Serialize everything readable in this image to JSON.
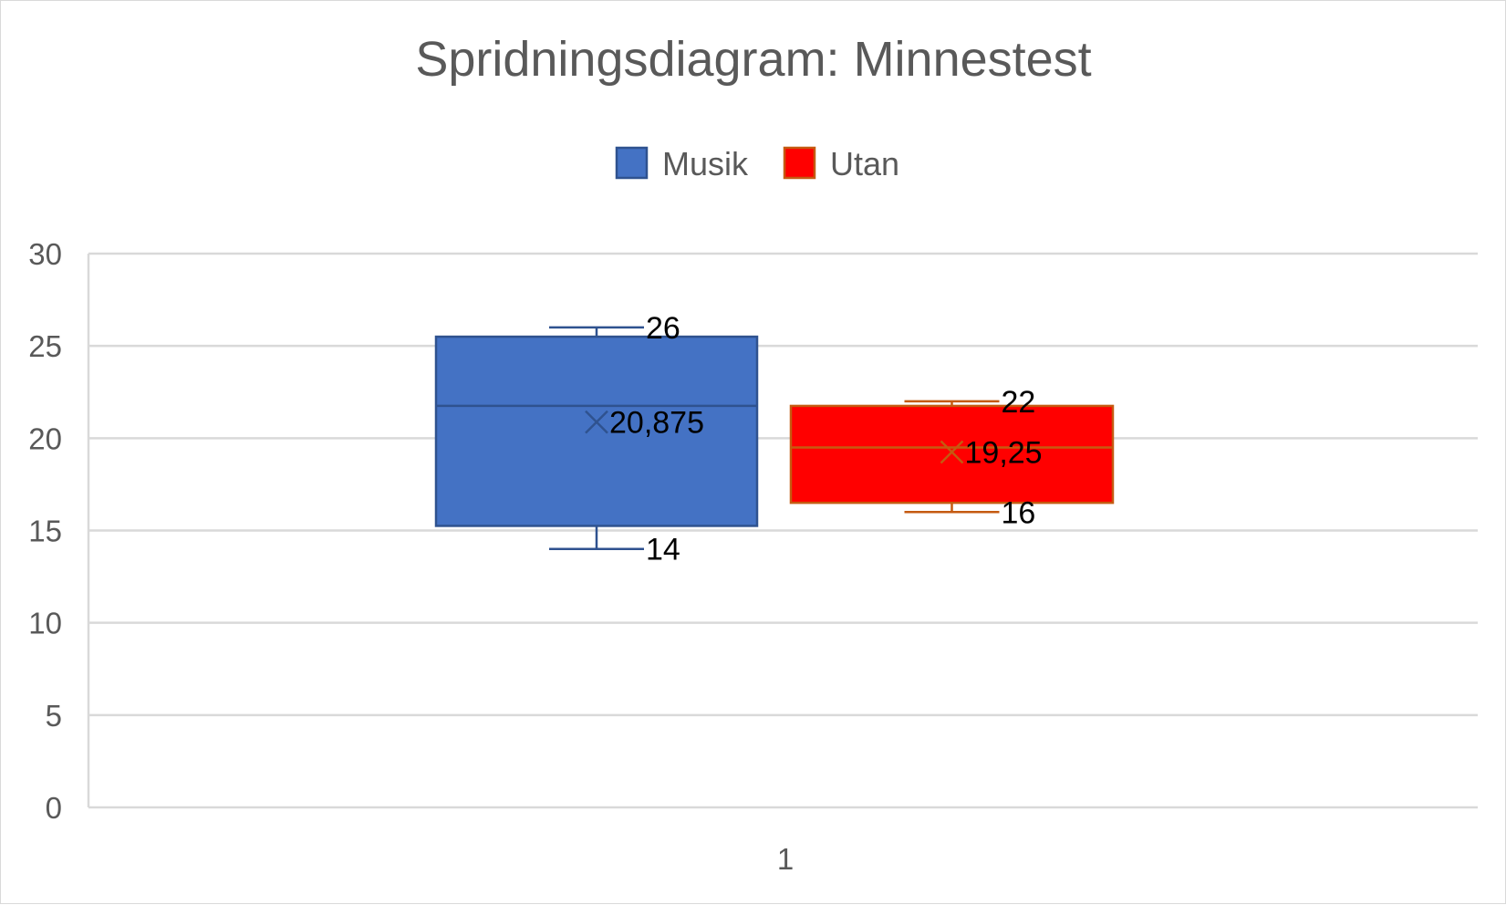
{
  "chart_data": {
    "type": "box",
    "title": "Spridningsdiagram: Minnestest",
    "categories": [
      "1"
    ],
    "ylim": [
      0,
      30
    ],
    "yticks": [
      0,
      5,
      10,
      15,
      20,
      25,
      30
    ],
    "grid": true,
    "legend": "top",
    "series": [
      {
        "name": "Musik",
        "color": "#4472C4",
        "border": "#2F528F",
        "min": 14,
        "q1": 15.25,
        "median": 21.75,
        "q3": 25.5,
        "max": 26,
        "mean": 20.875,
        "labels": {
          "max": "26",
          "mean": "20,875",
          "min": "14"
        }
      },
      {
        "name": "Utan",
        "color": "#FF0000",
        "border": "#C55A11",
        "min": 16,
        "q1": 16.5,
        "median": 19.5,
        "q3": 21.75,
        "max": 22,
        "mean": 19.25,
        "labels": {
          "max": "22",
          "mean": "19,25",
          "min": "16"
        }
      }
    ]
  }
}
